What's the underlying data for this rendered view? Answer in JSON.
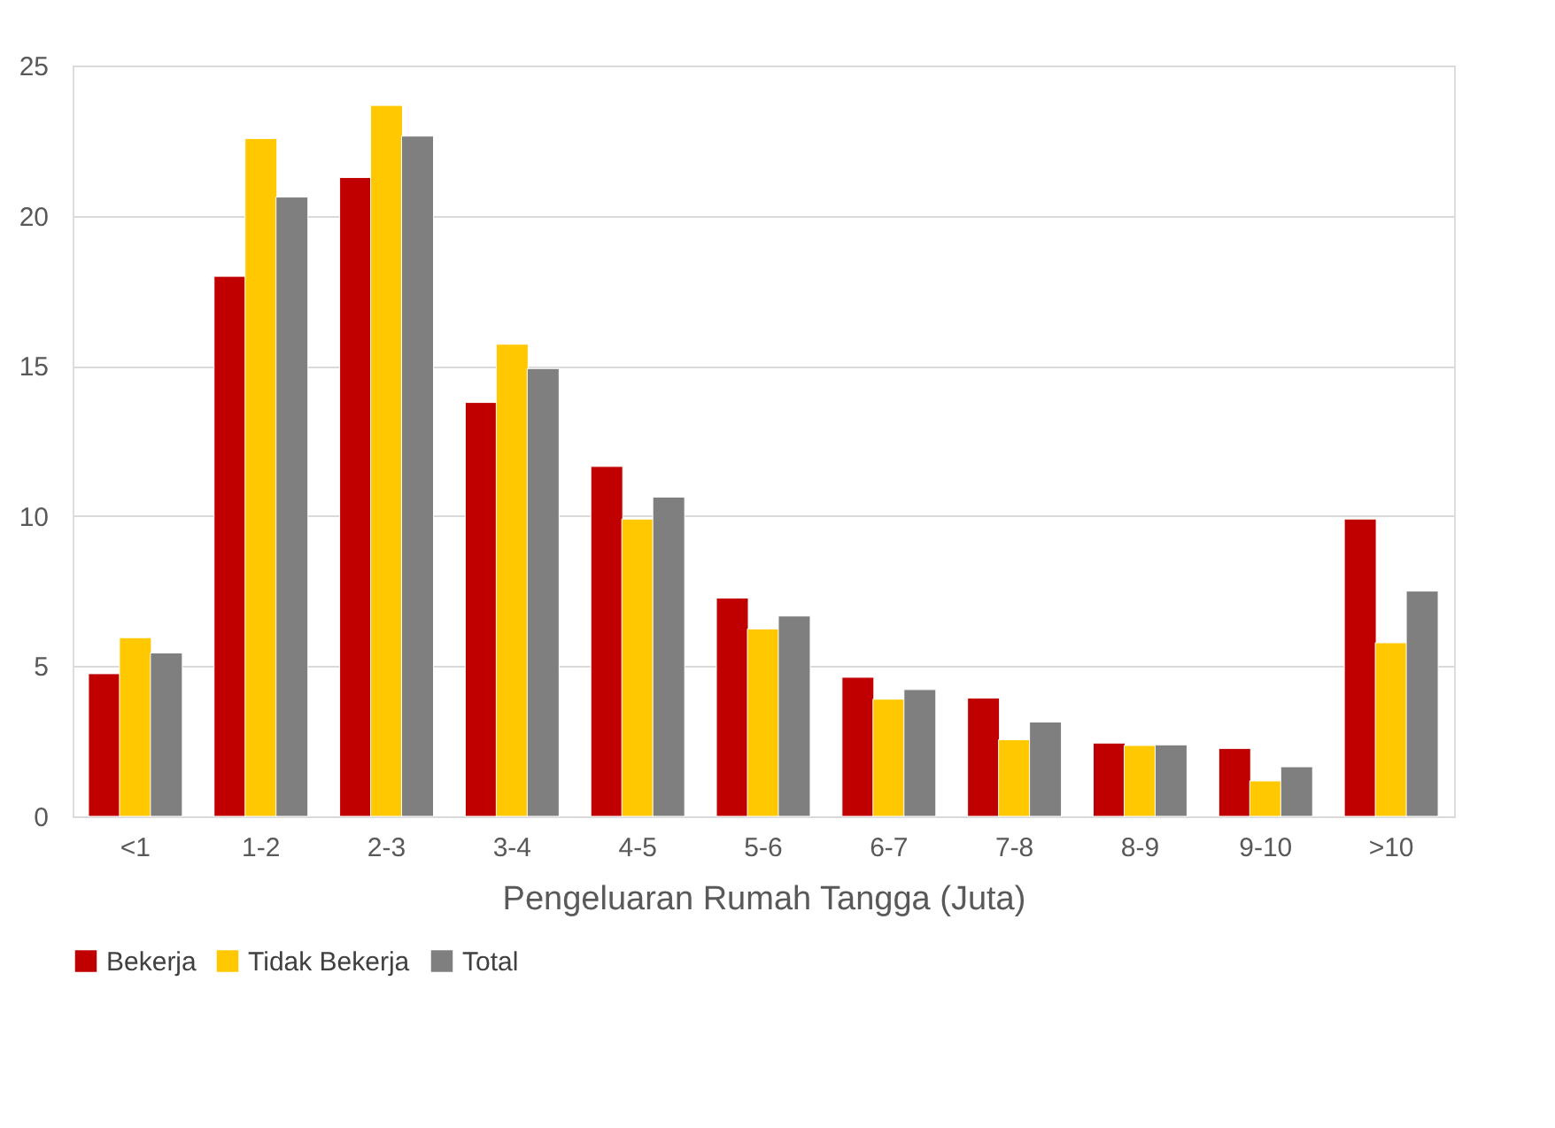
{
  "chart_data": {
    "type": "bar",
    "xlabel": "Pengeluaran Rumah Tangga (Juta)",
    "categories": [
      "<1",
      "1-2",
      "2-3",
      "3-4",
      "4-5",
      "5-6",
      "6-7",
      "7-8",
      "8-9",
      "9-10",
      ">10"
    ],
    "series": [
      {
        "name": "Bekerja",
        "color": "#c00000",
        "values": [
          4.75,
          17.98,
          21.27,
          13.78,
          11.65,
          7.27,
          4.63,
          3.94,
          2.44,
          2.26,
          9.9
        ]
      },
      {
        "name": "Tidak Bekerja",
        "color": "#ffc800",
        "values": [
          5.95,
          22.57,
          23.67,
          15.72,
          9.9,
          6.24,
          3.9,
          2.55,
          2.36,
          1.18,
          5.78
        ]
      },
      {
        "name": "Total",
        "color": "#7f7f7f",
        "values": [
          5.44,
          20.62,
          22.65,
          14.91,
          10.63,
          6.67,
          4.22,
          3.14,
          2.38,
          1.65,
          7.5
        ]
      }
    ],
    "ylim": [
      0,
      25
    ],
    "yticks": [
      0,
      5,
      10,
      15,
      20,
      25
    ],
    "grid": "y",
    "legend": "bottom"
  }
}
